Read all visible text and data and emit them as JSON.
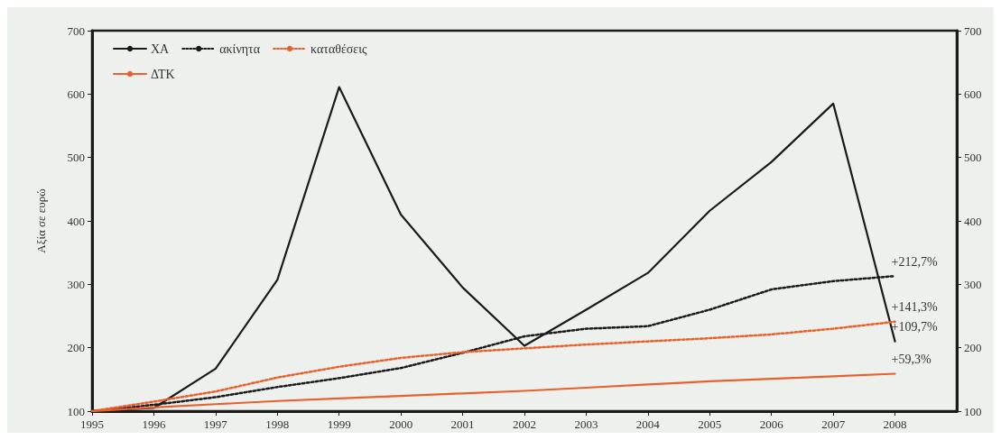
{
  "chart_data": {
    "type": "line",
    "ylabel": "Αξία σε ευρώ",
    "x": [
      1995,
      1996,
      1997,
      1998,
      1999,
      2000,
      2001,
      2002,
      2003,
      2004,
      2005,
      2006,
      2007,
      2008
    ],
    "series": [
      {
        "name": "ΧΑ",
        "color": "#1a1a1a",
        "line_style": "solid",
        "values": [
          100,
          105,
          167,
          307,
          611,
          410,
          295,
          203,
          260,
          318,
          416,
          493,
          585,
          210
        ]
      },
      {
        "name": "ακίνητα",
        "color": "#1a1a1a",
        "line_style": "dotted",
        "values": [
          100,
          110,
          122,
          138,
          152,
          168,
          192,
          218,
          230,
          234,
          260,
          292,
          305,
          313
        ]
      },
      {
        "name": "καταθέσεις",
        "color": "#e8602c",
        "line_style": "dotted",
        "values": [
          100,
          115,
          131,
          153,
          170,
          184,
          193,
          199,
          205,
          210,
          215,
          221,
          230,
          241
        ]
      },
      {
        "name": "ΔΤΚ",
        "color": "#e8602c",
        "line_style": "solid",
        "values": [
          100,
          106,
          111,
          116,
          120,
          124,
          128,
          132,
          137,
          142,
          147,
          151,
          155,
          159
        ]
      }
    ],
    "xlim": [
      1995,
      2009
    ],
    "xticks": [
      1995,
      1996,
      1997,
      1998,
      1999,
      2000,
      2001,
      2002,
      2003,
      2004,
      2005,
      2006,
      2007,
      2008
    ],
    "ylim": [
      100,
      700
    ],
    "yticks": [
      100,
      200,
      300,
      400,
      500,
      600,
      700
    ],
    "y2lim": [
      100,
      700
    ],
    "y2ticks": [
      100,
      200,
      300,
      400,
      500,
      600,
      700
    ],
    "legend": "top left",
    "grid": false,
    "marker": "none",
    "annotations": [
      "+109,7%",
      "+212,7%",
      "+141,3%",
      "+59,3%"
    ]
  }
}
